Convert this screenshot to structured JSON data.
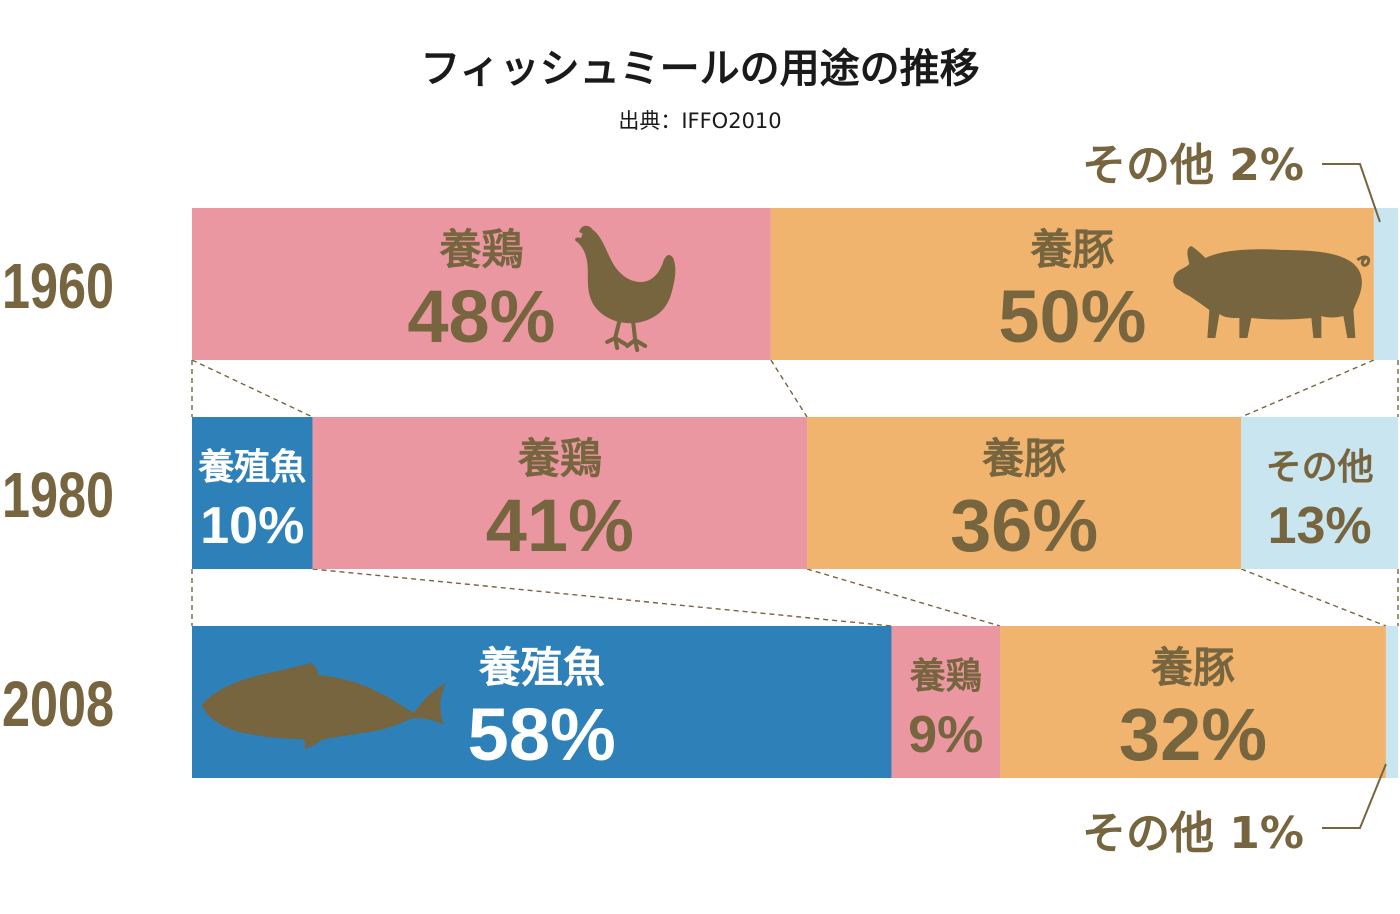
{
  "title": "フィッシュミールの用途の推移",
  "source": "出典：IFFO2010",
  "colors": {
    "fish": "#2e80b8",
    "chicken": "#ea97a1",
    "pig": "#f0b46e",
    "other": "#c9e6f0",
    "text_brown": "#76653e",
    "text_white": "#ffffff",
    "silhouette": "#76653e",
    "connector": "#76653e"
  },
  "chart_data": {
    "type": "bar",
    "orientation": "horizontal",
    "stacked": true,
    "unit": "%",
    "categories": [
      "1960",
      "1980",
      "2008"
    ],
    "series": [
      {
        "name": "養殖魚",
        "values": [
          0,
          10,
          58
        ]
      },
      {
        "name": "養鶏",
        "values": [
          48,
          41,
          9
        ]
      },
      {
        "name": "養豚",
        "values": [
          50,
          36,
          32
        ]
      },
      {
        "name": "その他",
        "values": [
          2,
          13,
          1
        ]
      }
    ]
  },
  "rows": [
    {
      "year": "1960",
      "segments": [
        {
          "key": "fish",
          "label": "",
          "value_text": "",
          "pct": 0,
          "icon": ""
        },
        {
          "key": "chicken",
          "label": "養鶏",
          "value_text": "48%",
          "pct": 48,
          "icon": "chicken-icon"
        },
        {
          "key": "pig",
          "label": "養豚",
          "value_text": "50%",
          "pct": 50,
          "icon": "pig-icon"
        },
        {
          "key": "other",
          "label": "",
          "value_text": "",
          "pct": 2,
          "icon": ""
        }
      ]
    },
    {
      "year": "1980",
      "segments": [
        {
          "key": "fish",
          "label": "養殖魚",
          "value_text": "10%",
          "pct": 10,
          "icon": ""
        },
        {
          "key": "chicken",
          "label": "養鶏",
          "value_text": "41%",
          "pct": 41,
          "icon": ""
        },
        {
          "key": "pig",
          "label": "養豚",
          "value_text": "36%",
          "pct": 36,
          "icon": ""
        },
        {
          "key": "other",
          "label": "その他",
          "value_text": "13%",
          "pct": 13,
          "icon": ""
        }
      ]
    },
    {
      "year": "2008",
      "segments": [
        {
          "key": "fish",
          "label": "養殖魚",
          "value_text": "58%",
          "pct": 58,
          "icon": "fish-icon"
        },
        {
          "key": "chicken",
          "label": "養鶏",
          "value_text": "9%",
          "pct": 9,
          "icon": ""
        },
        {
          "key": "pig",
          "label": "養豚",
          "value_text": "32%",
          "pct": 32,
          "icon": ""
        },
        {
          "key": "other",
          "label": "",
          "value_text": "",
          "pct": 1,
          "icon": ""
        }
      ]
    }
  ],
  "callouts": [
    {
      "row": 0,
      "text": "その他 2%",
      "position": "above"
    },
    {
      "row": 2,
      "text": "その他 1%",
      "position": "below"
    }
  ]
}
